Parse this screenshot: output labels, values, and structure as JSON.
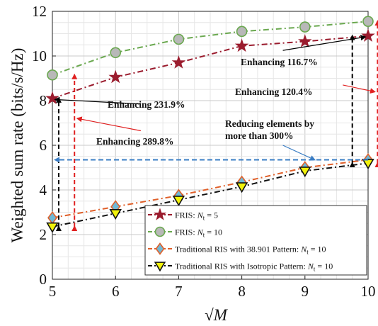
{
  "chart_data": {
    "type": "line",
    "xlabel": "√M",
    "ylabel": "Weighted sum rate (bits/s/Hz)",
    "xlim": [
      5,
      10
    ],
    "ylim": [
      0,
      12
    ],
    "x": [
      5,
      6,
      7,
      8,
      9,
      10
    ],
    "xticks": [
      "5",
      "6",
      "7",
      "8",
      "9",
      "10"
    ],
    "yticks": [
      "0",
      "2",
      "4",
      "6",
      "8",
      "10",
      "12"
    ],
    "grid": true,
    "legend_position": "bottom-right",
    "series": [
      {
        "name_prefix": "FRIS: ",
        "name_var": "N",
        "name_sub": "t",
        "name_suffix": " = 5",
        "values": [
          8.1,
          9.05,
          9.7,
          10.45,
          10.65,
          10.9
        ],
        "color": "#9b1c2e",
        "marker": "star",
        "marker_fill": "#9b1c2e",
        "dash": "8,4,2,4"
      },
      {
        "name_prefix": "FRIS: ",
        "name_var": "N",
        "name_sub": "t",
        "name_suffix": " = 10",
        "values": [
          9.15,
          10.15,
          10.75,
          11.1,
          11.3,
          11.55
        ],
        "color": "#6aa84f",
        "marker": "circle",
        "marker_fill": "#b8b8b8",
        "dash": "8,4,2,4"
      },
      {
        "name_prefix": "Traditional RIS with 38.901 Pattern: ",
        "name_var": "N",
        "name_sub": "t",
        "name_suffix": " = 10",
        "values": [
          2.75,
          3.25,
          3.75,
          4.35,
          5.0,
          5.35
        ],
        "color": "#e0602a",
        "marker": "diamond",
        "marker_fill": "#6fb8d6",
        "dash": "8,4,2,4"
      },
      {
        "name_prefix": "Traditional RIS with Isotropic Pattern: ",
        "name_var": "N",
        "name_sub": "t",
        "name_suffix": " = 10",
        "values": [
          2.35,
          2.95,
          3.55,
          4.15,
          4.85,
          5.2
        ],
        "color": "#111111",
        "marker": "triangle",
        "marker_fill": "#f2f20a",
        "dash": "8,4,2,4"
      }
    ],
    "annotations": [
      {
        "text": "Enhancing 116.7%",
        "from": [
          8.65,
          10.25
        ],
        "to": [
          9.95,
          10.85
        ],
        "color": "#000000"
      },
      {
        "text": "Enhancing 120.4%",
        "from": [
          9.6,
          8.7
        ],
        "to": [
          10.1,
          8.4
        ],
        "color": "#e02020"
      },
      {
        "text": "Enhancing 231.9%",
        "from": [
          6.4,
          7.85
        ],
        "to": [
          5.05,
          8.05
        ],
        "color": "#000000"
      },
      {
        "text": "Enhancing 289.8%",
        "from": [
          6.4,
          6.65
        ],
        "to": [
          5.4,
          7.2
        ],
        "color": "#e02020"
      },
      {
        "text": "Reducing elements by",
        "text2": "more than 300%",
        "from": [
          8.65,
          6.0
        ],
        "to": [
          9.15,
          5.35
        ],
        "color": "#3a7dc4"
      }
    ],
    "vertical_arrows": [
      {
        "x": 5.1,
        "y1": 2.35,
        "y2": 8.1,
        "color": "#000000"
      },
      {
        "x": 5.35,
        "y1": 2.35,
        "y2": 9.15,
        "color": "#e02020"
      },
      {
        "x": 9.75,
        "y1": 5.2,
        "y2": 10.9,
        "color": "#000000"
      },
      {
        "x": 10.15,
        "y1": 5.2,
        "y2": 11.55,
        "color": "#e02020"
      }
    ],
    "horizontal_arrow": {
      "y": 5.35,
      "x1": 5.0,
      "x2": 10.0,
      "color": "#3a7dc4"
    }
  }
}
